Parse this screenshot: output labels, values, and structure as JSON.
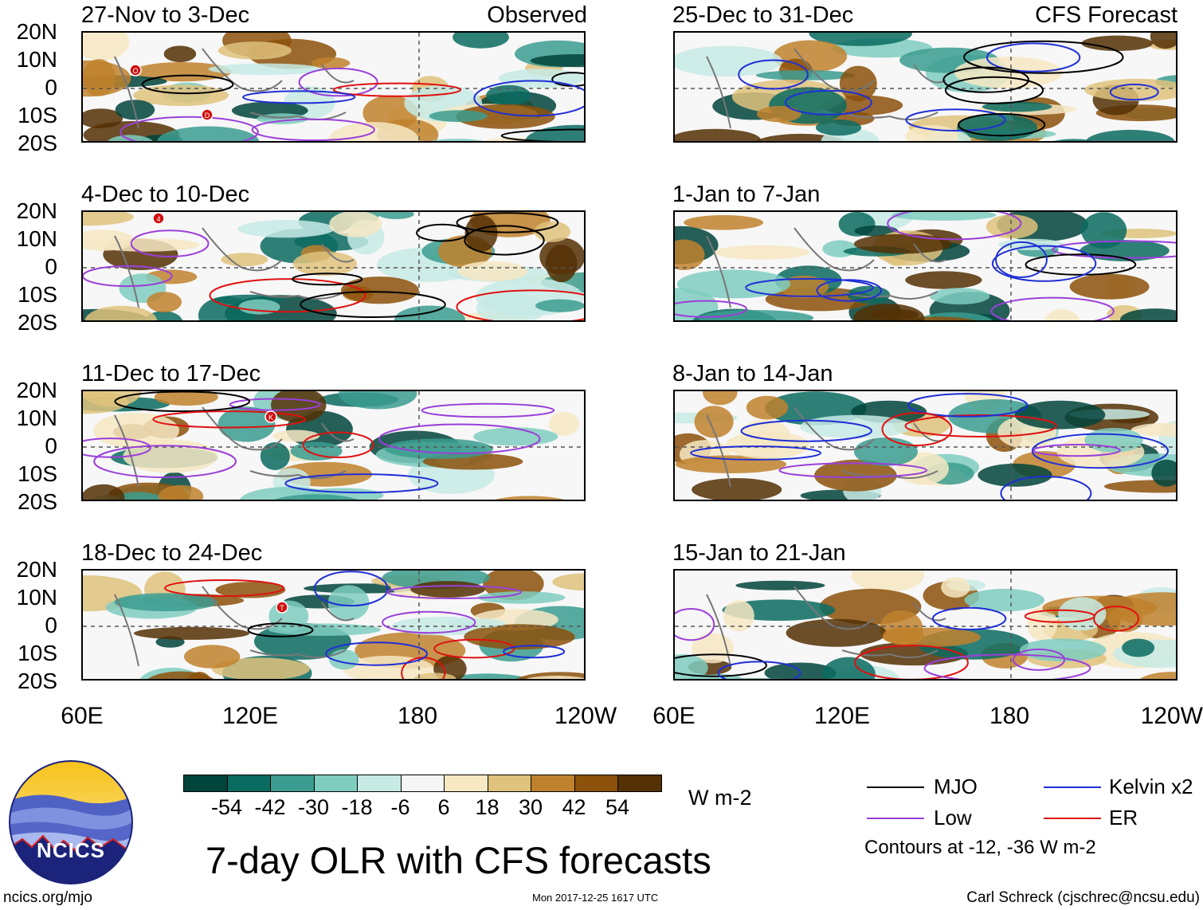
{
  "header": {
    "observed_label": "Observed",
    "forecast_label": "CFS Forecast"
  },
  "panels": [
    {
      "title": "27-Nov to 3-Dec"
    },
    {
      "title": "4-Dec to 10-Dec"
    },
    {
      "title": "11-Dec to 17-Dec"
    },
    {
      "title": "18-Dec to 24-Dec"
    },
    {
      "title": "25-Dec to 31-Dec"
    },
    {
      "title": "1-Jan to 7-Jan"
    },
    {
      "title": "8-Jan to 14-Jan"
    },
    {
      "title": "15-Jan to 21-Jan"
    }
  ],
  "lat_labels": [
    "20N",
    "10N",
    "0",
    "10S",
    "20S"
  ],
  "lon_labels": [
    "60E",
    "120E",
    "180",
    "120W"
  ],
  "colorbar": {
    "colors": [
      "#01443b",
      "#0a6b60",
      "#3b9c8f",
      "#7fcdbf",
      "#c7eae5",
      "#f5f5f5",
      "#f6e8c3",
      "#dfc27d",
      "#bf812d",
      "#8c510a",
      "#543005"
    ],
    "labels": [
      "-54",
      "-42",
      "-30",
      "-18",
      "-6",
      "6",
      "18",
      "30",
      "42",
      "54"
    ],
    "units": "W m-2"
  },
  "legend": {
    "items": [
      {
        "label": "MJO",
        "color": "#000000"
      },
      {
        "label": "Kelvin x2",
        "color": "#1f2fd6"
      },
      {
        "label": "Low",
        "color": "#9b3fd9"
      },
      {
        "label": "ER",
        "color": "#e01010"
      }
    ],
    "note": "Contours at -12, -36 W m-2"
  },
  "logo": {
    "text": "NCICS"
  },
  "main_title": "7-day OLR with CFS forecasts",
  "footer": {
    "url": "ncics.org/mjo",
    "timestamp": "Mon 2017-12-25 1617 UTC",
    "credit": "Carl Schreck (cjschrec@ncsu.edu)"
  },
  "storm_markers": [
    "O",
    "D",
    "4",
    "K",
    "T"
  ]
}
